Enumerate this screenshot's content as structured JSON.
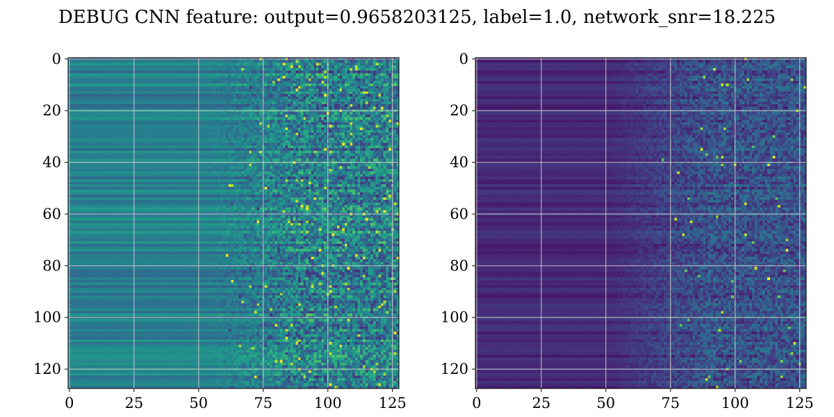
{
  "chart_data": [
    {
      "type": "heatmap",
      "title": "DEBUG CNN feature: output=0.9658203125, label=1.0, network_snr=18.225",
      "panel": "left",
      "colormap": "viridis",
      "grid": true,
      "xlim": [
        -0.5,
        127.5
      ],
      "ylim": [
        127.5,
        -0.5
      ],
      "xticks": [
        0,
        25,
        50,
        75,
        100,
        125
      ],
      "yticks": [
        0,
        20,
        40,
        60,
        80,
        100,
        120
      ],
      "xtick_labels": [
        "0",
        "25",
        "50",
        "75",
        "100",
        "125"
      ],
      "ytick_labels": [
        "0",
        "20",
        "40",
        "60",
        "80",
        "100",
        "120"
      ],
      "shape": [
        128,
        128
      ],
      "description_of_values": "teal-green horizontal bands for columns 0-50, increasingly noisy toward higher columns with bright yellow spots near columns 80-105"
    },
    {
      "type": "heatmap",
      "panel": "right",
      "colormap": "viridis",
      "grid": true,
      "xlim": [
        -0.5,
        127.5
      ],
      "ylim": [
        127.5,
        -0.5
      ],
      "xticks": [
        0,
        25,
        50,
        75,
        100,
        125
      ],
      "yticks": [
        0,
        20,
        40,
        60,
        80,
        100,
        120
      ],
      "xtick_labels": [
        "0",
        "25",
        "50",
        "75",
        "100",
        "125"
      ],
      "ytick_labels": [
        "0",
        "20",
        "40",
        "60",
        "80",
        "100",
        "120"
      ],
      "shape": [
        128,
        128
      ],
      "description_of_values": "mostly dark purple, faint bands for columns 0-50, speckled blue/green noise for columns 50-128 with a few bright points"
    }
  ],
  "figure": {
    "title": "DEBUG CNN feature: output=0.9658203125, label=1.0, network_snr=18.225"
  }
}
